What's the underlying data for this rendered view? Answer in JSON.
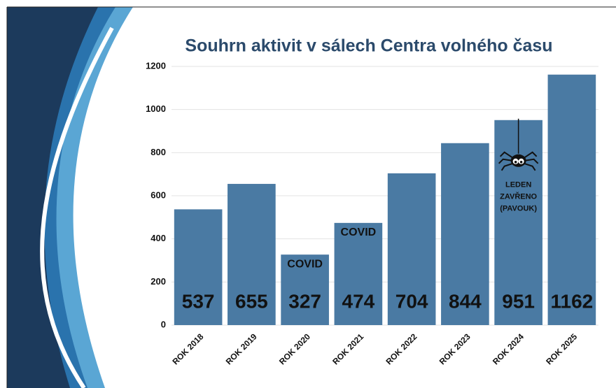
{
  "chart_data": {
    "type": "bar",
    "title": "Souhrn aktivit v sálech Centra volného času",
    "categories": [
      "ROK 2018",
      "ROK 2019",
      "ROK 2020",
      "ROK 2021",
      "ROK 2022",
      "ROK 2023",
      "ROK 2024",
      "ROK 2025"
    ],
    "values": [
      537,
      655,
      327,
      474,
      704,
      844,
      951,
      1162
    ],
    "color": "#4a7aa3",
    "ylim": [
      0,
      1200
    ],
    "yticks": [
      0,
      200,
      400,
      600,
      800,
      1000,
      1200
    ],
    "grid": true,
    "annotations": [
      {
        "x": "ROK 2020",
        "lines": [
          "COVID"
        ]
      },
      {
        "x": "ROK 2021",
        "lines": [
          "COVID"
        ]
      },
      {
        "x": "ROK 2024",
        "lines": [
          "LEDEN",
          "ZAVŘENO",
          "(PAVOUK)"
        ]
      }
    ]
  }
}
